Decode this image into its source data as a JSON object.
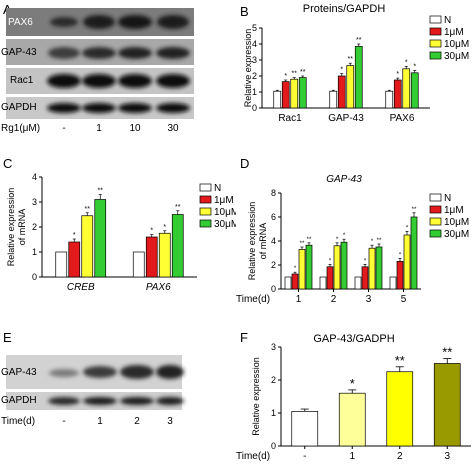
{
  "panel_letters": {
    "a": "A",
    "b": "B",
    "c": "C",
    "d": "D",
    "e": "E",
    "f": "F"
  },
  "blot_a": {
    "rows": [
      "PAX6",
      "GAP-43",
      "Rac1",
      "GAPDH"
    ],
    "treatment_label": "Rg1(μM)",
    "lanes": [
      "-",
      "1",
      "10",
      "30"
    ]
  },
  "blot_e": {
    "rows": [
      "GAP-43",
      "GAPDH"
    ],
    "treatment_label": "Time(d)",
    "lanes": [
      "-",
      "1",
      "2",
      "3"
    ]
  },
  "colors": {
    "N": "#ffffff",
    "1uM": "#e31a1c",
    "10uM": "#ffff33",
    "30uM": "#33cc33",
    "f_bars": [
      "#ffffff",
      "#ffff99",
      "#ffff00",
      "#999900"
    ]
  },
  "chart_data": [
    {
      "id": "B",
      "type": "bar",
      "title": "Proteins/GAPDH",
      "ylabel": "Relative expression",
      "xlabel": "",
      "ylim": [
        0,
        5
      ],
      "yticks": [
        "0",
        "1",
        "2",
        "3",
        "4",
        "5"
      ],
      "categories": [
        "Rac1",
        "GAP-43",
        "PAX6"
      ],
      "category_style": "normal",
      "legend": [
        "N",
        "1μM",
        "10μM",
        "30μM"
      ],
      "legend_position": "right",
      "series": [
        {
          "name": "N",
          "values": [
            1.05,
            1.05,
            1.05
          ],
          "errors": [
            0.06,
            0.06,
            0.06
          ],
          "stars": [
            "",
            "",
            ""
          ]
        },
        {
          "name": "1μM",
          "values": [
            1.65,
            2.0,
            1.75
          ],
          "errors": [
            0.1,
            0.15,
            0.12
          ],
          "stars": [
            "*",
            "*",
            "*"
          ]
        },
        {
          "name": "10μM",
          "values": [
            1.8,
            2.65,
            2.45
          ],
          "errors": [
            0.1,
            0.15,
            0.15
          ],
          "stars": [
            "**",
            "**",
            "*"
          ]
        },
        {
          "name": "30μM",
          "values": [
            1.9,
            3.85,
            2.2
          ],
          "errors": [
            0.1,
            0.15,
            0.15
          ],
          "stars": [
            "**",
            "**",
            "*"
          ]
        }
      ]
    },
    {
      "id": "C",
      "type": "bar",
      "title": "",
      "ylabel": "Relative expression of mRNA",
      "xlabel": "",
      "ylim": [
        0,
        4
      ],
      "yticks": [
        "0",
        "1",
        "2",
        "3",
        "4"
      ],
      "categories": [
        "CREB",
        "PAX6"
      ],
      "category_style": "italic",
      "legend": [
        "N",
        "1μM",
        "10μM",
        "30μM"
      ],
      "legend_position": "right",
      "series": [
        {
          "name": "N",
          "values": [
            1.0,
            1.0
          ],
          "errors": [
            0,
            0
          ],
          "stars": [
            "",
            ""
          ]
        },
        {
          "name": "1μM",
          "values": [
            1.4,
            1.6
          ],
          "errors": [
            0.12,
            0.1
          ],
          "stars": [
            "*",
            "*"
          ]
        },
        {
          "name": "10μM",
          "values": [
            2.45,
            1.75
          ],
          "errors": [
            0.12,
            0.1
          ],
          "stars": [
            "**",
            "*"
          ]
        },
        {
          "name": "30μM",
          "values": [
            3.1,
            2.5
          ],
          "errors": [
            0.2,
            0.15
          ],
          "stars": [
            "**",
            "**"
          ]
        }
      ]
    },
    {
      "id": "D",
      "type": "bar",
      "title": "GAP-43",
      "title_style": "italic",
      "ylabel": "Relative expression of mRNA",
      "xlabel": "Time(d)",
      "ylim": [
        0,
        8
      ],
      "yticks": [
        "0",
        "2",
        "4",
        "6",
        "8"
      ],
      "categories": [
        "1",
        "2",
        "3",
        "5"
      ],
      "category_style": "normal",
      "legend": [
        "N",
        "1μM",
        "10μM",
        "30μM"
      ],
      "legend_position": "right",
      "series": [
        {
          "name": "N",
          "values": [
            1.0,
            1.0,
            1.0,
            1.0
          ],
          "errors": [
            0,
            0,
            0,
            0
          ],
          "stars": [
            "",
            "",
            "",
            ""
          ]
        },
        {
          "name": "1μM",
          "values": [
            1.25,
            1.85,
            1.85,
            2.3
          ],
          "errors": [
            0.15,
            0.2,
            0.2,
            0.25
          ],
          "stars": [
            "*",
            "*",
            "*",
            "*"
          ]
        },
        {
          "name": "10μM",
          "values": [
            3.3,
            3.6,
            3.4,
            4.5
          ],
          "errors": [
            0.2,
            0.25,
            0.25,
            0.3
          ],
          "stars": [
            "**",
            "*",
            "*",
            "*"
          ]
        },
        {
          "name": "30μM",
          "values": [
            3.65,
            3.9,
            3.5,
            6.0
          ],
          "errors": [
            0.2,
            0.25,
            0.25,
            0.35
          ],
          "stars": [
            "**",
            "*",
            "**",
            "**"
          ]
        }
      ]
    },
    {
      "id": "F",
      "type": "bar",
      "title": "GAP-43/GADPH",
      "ylabel": "Relative expression",
      "xlabel": "Time(d)",
      "ylim": [
        0,
        3
      ],
      "yticks": [
        "0",
        "1",
        "2",
        "3"
      ],
      "categories": [
        "-",
        "1",
        "2",
        "3"
      ],
      "values": [
        1.05,
        1.6,
        2.25,
        2.5
      ],
      "errors": [
        0.07,
        0.1,
        0.15,
        0.15
      ],
      "stars": [
        "",
        "*",
        "**",
        "**"
      ]
    }
  ]
}
